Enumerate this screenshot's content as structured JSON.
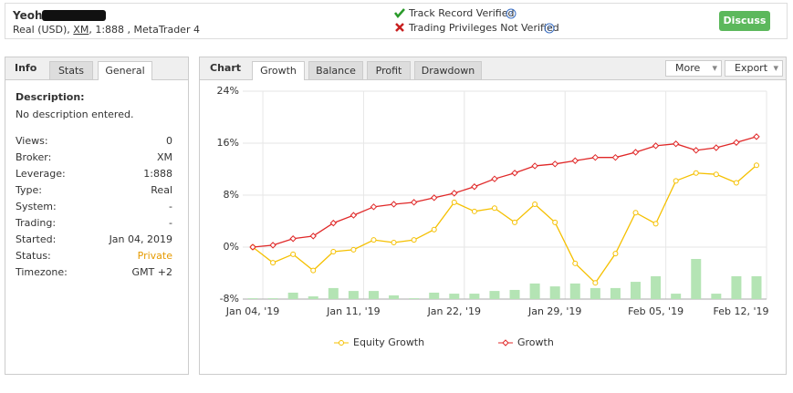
{
  "header": {
    "name": "Yeoh",
    "account": [
      "Real (USD),",
      "XM",
      ", 1:888 , MetaTrader 4"
    ],
    "verified": "Track Record Verified",
    "not_verified": "Trading Privileges Not Verified",
    "button": "Discuss"
  },
  "info": {
    "title": "Info",
    "tabs": [
      "Stats",
      "General"
    ],
    "description_label": "Description:",
    "description": "No description entered.",
    "rows": [
      [
        "Views:",
        "0"
      ],
      [
        "Broker:",
        "XM"
      ],
      [
        "Leverage:",
        "1:888"
      ],
      [
        "Type:",
        "Real"
      ],
      [
        "System:",
        "-"
      ],
      [
        "Trading:",
        "-"
      ],
      [
        "Started:",
        "Jan 04, 2019"
      ],
      [
        "Status:",
        "Private"
      ],
      [
        "Timezone:",
        "GMT +2"
      ]
    ]
  },
  "chart_panel": {
    "title": "Chart",
    "tabs": [
      "Growth",
      "Balance",
      "Profit",
      "Drawdown"
    ],
    "menus": [
      "More",
      "Export"
    ]
  },
  "chart_data": {
    "type": "line",
    "categories": [
      "Jan 04, '19",
      null,
      null,
      null,
      null,
      "Jan 11, '19",
      null,
      null,
      null,
      null,
      "Jan 22, '19",
      null,
      null,
      null,
      null,
      "Jan 29, '19",
      null,
      null,
      null,
      null,
      "Feb 05, '19",
      null,
      null,
      null,
      null,
      "Feb 12, '19"
    ],
    "series": [
      {
        "name": "Equity Growth",
        "color": "#f5c000",
        "values": [
          0,
          -2.4,
          -1.1,
          -3.6,
          -0.7,
          -0.4,
          1.1,
          0.7,
          1.1,
          2.7,
          6.9,
          5.5,
          6.0,
          3.8,
          6.6,
          3.8,
          -2.5,
          -5.5,
          -1.0,
          5.3,
          3.6,
          10.2,
          11.4,
          11.2,
          9.9,
          12.6
        ]
      },
      {
        "name": "Growth",
        "color": "#e02828",
        "values": [
          0,
          0.3,
          1.3,
          1.7,
          3.7,
          4.9,
          6.2,
          6.6,
          6.9,
          7.6,
          8.3,
          9.3,
          10.5,
          11.4,
          12.5,
          12.8,
          13.3,
          13.8,
          13.8,
          14.6,
          15.6,
          15.9,
          14.9,
          15.3,
          16.1,
          17.0
        ]
      }
    ],
    "bars": {
      "color": "#b4e4b4",
      "values": [
        0.4,
        0.4,
        3.1,
        1.3,
        5.3,
        3.9,
        3.9,
        1.8,
        0.4,
        3.1,
        2.6,
        2.6,
        3.9,
        4.4,
        7.5,
        6.1,
        7.5,
        5.3,
        5.3,
        8.3,
        11,
        2.6,
        19.3,
        2.6,
        11,
        11
      ]
    },
    "y2lim": [
      0,
      100
    ],
    "ylim": [
      -8,
      24
    ],
    "yticks": [
      {
        "value": -8,
        "label": "-8%"
      },
      {
        "value": 0,
        "label": "0%"
      },
      {
        "value": 8,
        "label": "8%"
      },
      {
        "value": 16,
        "label": "16%"
      },
      {
        "value": 24,
        "label": "24%"
      }
    ],
    "grid": true,
    "legend": "bottom"
  }
}
